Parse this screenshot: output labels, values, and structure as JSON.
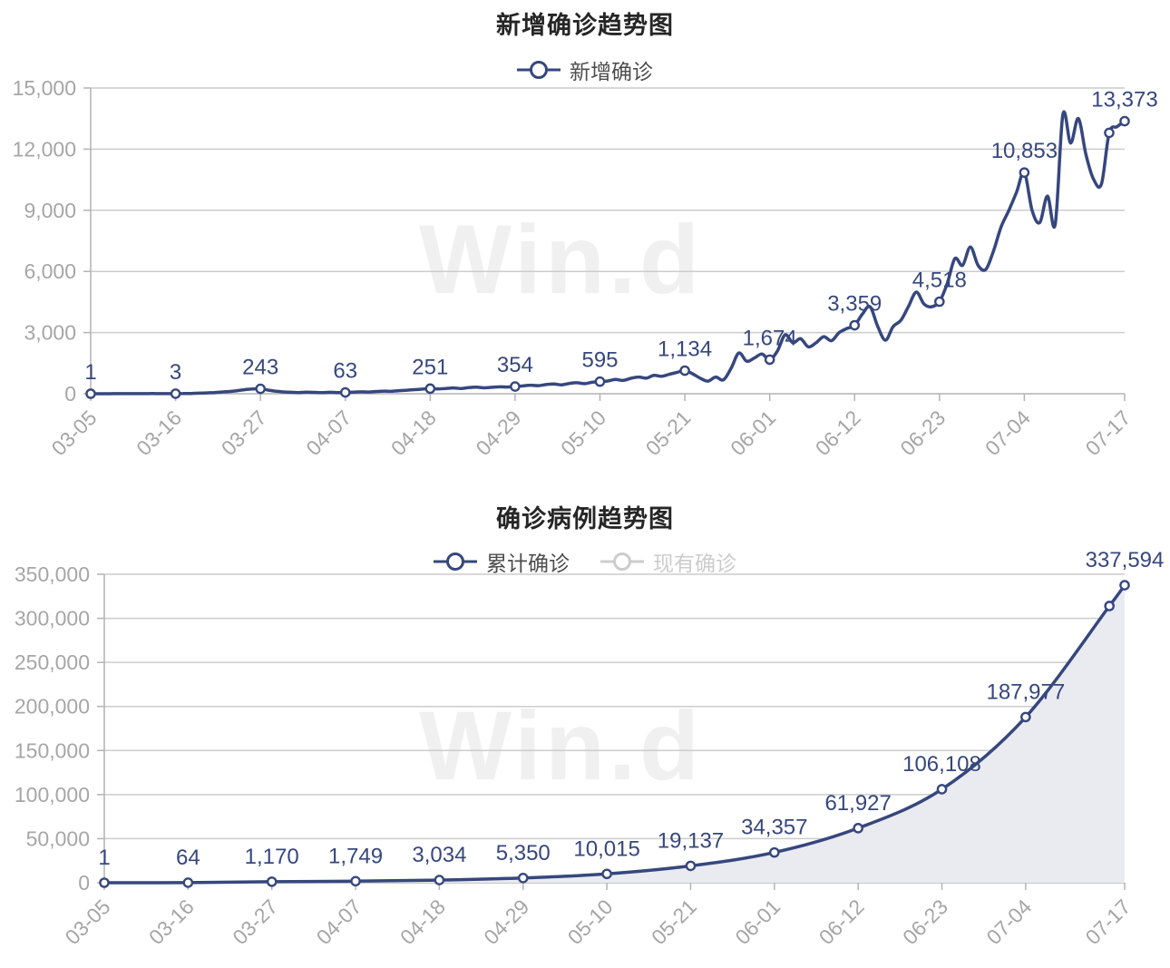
{
  "watermark": {
    "text": "Win.d"
  },
  "colors": {
    "line_navy": "#36477d",
    "marker_fill": "#ffffff",
    "area_fill": "#eaebf1",
    "grid": "#cccccc",
    "axis": "#b3b3b3",
    "tick_text": "#a6a6a6",
    "title_text": "#262626",
    "legend_text": "#4d4d4d",
    "legend_disabled": "#cccccc",
    "watermark_text": "#f0f0f0"
  },
  "chart_data": [
    {
      "type": "line",
      "title": "新增确诊趋势图",
      "legend": [
        {
          "label": "新增确诊",
          "name": "new-confirmed",
          "active": true
        }
      ],
      "ylim": [
        0,
        15000
      ],
      "y_ticks": [
        0,
        3000,
        6000,
        9000,
        12000,
        15000
      ],
      "y_tick_labels": [
        "0",
        "3,000",
        "6,000",
        "9,000",
        "12,000",
        "15,000"
      ],
      "x_tick_labels": [
        "03-05",
        "03-16",
        "03-27",
        "04-07",
        "04-18",
        "04-29",
        "05-10",
        "05-21",
        "06-01",
        "06-12",
        "06-23",
        "07-04",
        "07-17"
      ],
      "x_tick_days": [
        0,
        11,
        22,
        33,
        44,
        55,
        66,
        77,
        88,
        99,
        110,
        121,
        134
      ],
      "total_days": 134,
      "labeled_points": [
        {
          "day": 0,
          "date": "03-05",
          "value": 1,
          "text": "1"
        },
        {
          "day": 11,
          "date": "03-16",
          "value": 3,
          "text": "3"
        },
        {
          "day": 22,
          "date": "03-27",
          "value": 243,
          "text": "243"
        },
        {
          "day": 33,
          "date": "04-07",
          "value": 63,
          "text": "63"
        },
        {
          "day": 44,
          "date": "04-18",
          "value": 251,
          "text": "251"
        },
        {
          "day": 55,
          "date": "04-29",
          "value": 354,
          "text": "354"
        },
        {
          "day": 66,
          "date": "05-10",
          "value": 595,
          "text": "595"
        },
        {
          "day": 77,
          "date": "05-21",
          "value": 1134,
          "text": "1,134"
        },
        {
          "day": 88,
          "date": "06-01",
          "value": 1674,
          "text": "1,674"
        },
        {
          "day": 99,
          "date": "06-12",
          "value": 3359,
          "text": "3,359"
        },
        {
          "day": 110,
          "date": "06-23",
          "value": 4518,
          "text": "4,518"
        },
        {
          "day": 121,
          "date": "07-04",
          "value": 10853,
          "text": "10,853"
        },
        {
          "day": 134,
          "date": "07-17",
          "value": 13373,
          "text": "13,373"
        }
      ],
      "extra_marker_days": [
        132
      ],
      "daily_values_estimated": [
        1,
        2,
        1,
        3,
        5,
        3,
        6,
        4,
        7,
        5,
        4,
        3,
        10,
        15,
        25,
        40,
        60,
        85,
        110,
        150,
        200,
        230,
        243,
        180,
        120,
        90,
        70,
        60,
        75,
        65,
        55,
        70,
        60,
        63,
        80,
        95,
        85,
        110,
        130,
        120,
        150,
        175,
        200,
        225,
        251,
        235,
        260,
        285,
        255,
        300,
        320,
        290,
        315,
        340,
        330,
        354,
        385,
        420,
        395,
        450,
        480,
        435,
        505,
        540,
        495,
        565,
        595,
        625,
        700,
        655,
        755,
        820,
        765,
        900,
        855,
        955,
        1050,
        1134,
        980,
        760,
        620,
        820,
        680,
        1250,
        2000,
        1600,
        1750,
        1950,
        1674,
        2100,
        2890,
        2500,
        2700,
        2300,
        2500,
        2800,
        2600,
        3000,
        3200,
        3359,
        3900,
        4270,
        3300,
        2625,
        3300,
        3600,
        4300,
        4985,
        4400,
        4270,
        4518,
        5400,
        6630,
        6300,
        7200,
        6300,
        6100,
        7000,
        8200,
        9000,
        9900,
        10853,
        9000,
        8400,
        9700,
        8300,
        13700,
        12300,
        13500,
        11700,
        10500,
        10300,
        12800,
        13100,
        13373
      ]
    },
    {
      "type": "area",
      "title": "确诊病例趋势图",
      "legend": [
        {
          "label": "累计确诊",
          "name": "cumulative-confirmed",
          "active": true
        },
        {
          "label": "现有确诊",
          "name": "current-confirmed",
          "active": false
        }
      ],
      "ylim": [
        0,
        350000
      ],
      "y_ticks": [
        0,
        50000,
        100000,
        150000,
        200000,
        250000,
        300000,
        350000
      ],
      "y_tick_labels": [
        "0",
        "50,000",
        "100,000",
        "150,000",
        "200,000",
        "250,000",
        "300,000",
        "350,000"
      ],
      "x_tick_labels": [
        "03-05",
        "03-16",
        "03-27",
        "04-07",
        "04-18",
        "04-29",
        "05-10",
        "05-21",
        "06-01",
        "06-12",
        "06-23",
        "07-04",
        "07-17"
      ],
      "x_tick_days": [
        0,
        11,
        22,
        33,
        44,
        55,
        66,
        77,
        88,
        99,
        110,
        121,
        134
      ],
      "total_days": 134,
      "points": [
        {
          "day": 0,
          "date": "03-05",
          "value": 1,
          "text": "1"
        },
        {
          "day": 11,
          "date": "03-16",
          "value": 64,
          "text": "64"
        },
        {
          "day": 22,
          "date": "03-27",
          "value": 1170,
          "text": "1,170"
        },
        {
          "day": 33,
          "date": "04-07",
          "value": 1749,
          "text": "1,749"
        },
        {
          "day": 44,
          "date": "04-18",
          "value": 3034,
          "text": "3,034"
        },
        {
          "day": 55,
          "date": "04-29",
          "value": 5350,
          "text": "5,350"
        },
        {
          "day": 66,
          "date": "05-10",
          "value": 10015,
          "text": "10,015"
        },
        {
          "day": 77,
          "date": "05-21",
          "value": 19137,
          "text": "19,137"
        },
        {
          "day": 88,
          "date": "06-01",
          "value": 34357,
          "text": "34,357"
        },
        {
          "day": 99,
          "date": "06-12",
          "value": 61927,
          "text": "61,927"
        },
        {
          "day": 110,
          "date": "06-23",
          "value": 106108,
          "text": "106,108"
        },
        {
          "day": 121,
          "date": "07-04",
          "value": 187977,
          "text": "187,977"
        },
        {
          "day": 132,
          "date": "07-15",
          "value": 314000,
          "text": ""
        },
        {
          "day": 134,
          "date": "07-17",
          "value": 337594,
          "text": "337,594"
        }
      ]
    }
  ]
}
